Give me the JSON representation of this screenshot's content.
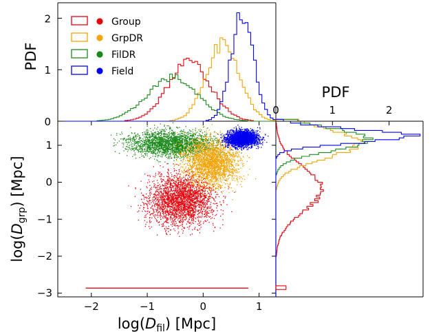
{
  "chart_data": {
    "type": "scatter",
    "layout": "scatter-with-marginal-histograms",
    "colors": {
      "Group": "#e8000b",
      "GrpDR": "#f5a300",
      "FilDR": "#1a8a1a",
      "Field": "#0000ee"
    },
    "legend": {
      "placement": "upper-left of top panel",
      "entries": [
        "Group",
        "GrpDR",
        "FilDR",
        "Field"
      ]
    },
    "main": {
      "xlabel": {
        "pre": "log(",
        "var": "D",
        "sub": "fil",
        "post": ") [Mpc]"
      },
      "ylabel": {
        "pre": "log(",
        "var": "D",
        "sub": "grp",
        "post": ") [Mpc]"
      },
      "xlim": [
        -2.6,
        1.3
      ],
      "ylim": [
        -3.1,
        1.65
      ],
      "xticks": [
        {
          "v": -2,
          "label": "−2"
        },
        {
          "v": -1,
          "label": "−1"
        },
        {
          "v": 0,
          "label": "0"
        },
        {
          "v": 1,
          "label": "1"
        }
      ],
      "yticks": [
        {
          "v": -3,
          "label": "−3"
        },
        {
          "v": -2,
          "label": "−2"
        },
        {
          "v": -1,
          "label": "−1"
        },
        {
          "v": 0,
          "label": "0"
        },
        {
          "v": 1,
          "label": "1"
        }
      ],
      "clusters": [
        {
          "name": "FilDR",
          "cx": -0.55,
          "cy": 1.05,
          "sx": 0.55,
          "sy": 0.25
        },
        {
          "name": "Group",
          "cx": -0.4,
          "cy": -0.45,
          "sx": 0.42,
          "sy": 0.5
        },
        {
          "name": "GrpDR",
          "cx": 0.15,
          "cy": 0.55,
          "sx": 0.35,
          "sy": 0.45
        },
        {
          "name": "Field",
          "cx": 0.7,
          "cy": 1.2,
          "sx": 0.2,
          "sy": 0.16
        }
      ],
      "group_floor_y": -2.85,
      "group_floor_x": [
        -2.1,
        0.8
      ]
    },
    "top_hist": {
      "ylabel": "PDF",
      "ylim": [
        0,
        2.3
      ],
      "yticks": [
        {
          "v": 0,
          "label": "0"
        },
        {
          "v": 1,
          "label": "1"
        },
        {
          "v": 2,
          "label": "2"
        }
      ],
      "x_range": [
        -2.5,
        1.3
      ],
      "bin_width": 0.05,
      "series": [
        {
          "name": "Group",
          "peak_x": -0.25,
          "peak": 1.15,
          "width": 0.38
        },
        {
          "name": "GrpDR",
          "peak_x": 0.35,
          "peak": 1.5,
          "width": 0.3
        },
        {
          "name": "FilDR",
          "peak_x": -0.55,
          "peak": 0.85,
          "width": 0.45
        },
        {
          "name": "Field",
          "peak_x": 0.7,
          "peak": 2.1,
          "width": 0.2
        }
      ]
    },
    "right_hist": {
      "xlabel": "PDF",
      "xlim": [
        0,
        2.6
      ],
      "xticks": [
        {
          "v": 0,
          "label": "0"
        },
        {
          "v": 1,
          "label": "1"
        },
        {
          "v": 2,
          "label": "2"
        }
      ],
      "y_range": [
        -3.1,
        1.65
      ],
      "bin_width": 0.05,
      "series": [
        {
          "name": "Group",
          "peak_y": -0.2,
          "peak": 0.8,
          "width": 0.6
        },
        {
          "name": "GrpDR",
          "peak_y": 1.05,
          "peak": 1.45,
          "width": 0.4
        },
        {
          "name": "FilDR",
          "peak_y": 1.15,
          "peak": 1.65,
          "width": 0.3
        },
        {
          "name": "Field",
          "peak_y": 1.25,
          "peak": 2.4,
          "width": 0.18
        }
      ]
    }
  }
}
